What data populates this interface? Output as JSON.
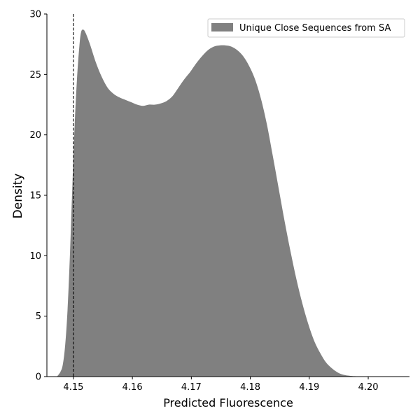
{
  "chart_data": {
    "type": "area",
    "xlabel": "Predicted Fluorescence",
    "ylabel": "Density",
    "xlim": [
      4.1455,
      4.207
    ],
    "ylim": [
      0,
      30
    ],
    "xticks": [
      4.15,
      4.16,
      4.17,
      4.18,
      4.19,
      4.2
    ],
    "xtick_labels": [
      "4.15",
      "4.16",
      "4.17",
      "4.18",
      "4.19",
      "4.20"
    ],
    "yticks": [
      0,
      5,
      10,
      15,
      20,
      25,
      30
    ],
    "ytick_labels": [
      "0",
      "5",
      "10",
      "15",
      "20",
      "25",
      "30"
    ],
    "grid": false,
    "legend_position": "top-right",
    "vline_x": 4.15,
    "series": [
      {
        "name": "Unique Close Sequences from SA",
        "color": "#808080",
        "points": [
          [
            4.1472,
            0.0
          ],
          [
            4.1478,
            0.4
          ],
          [
            4.1482,
            1.0
          ],
          [
            4.1486,
            2.6
          ],
          [
            4.149,
            5.5
          ],
          [
            4.1494,
            10.0
          ],
          [
            4.1498,
            15.5
          ],
          [
            4.1502,
            20.7
          ],
          [
            4.1506,
            24.6
          ],
          [
            4.151,
            27.3
          ],
          [
            4.1513,
            28.5
          ],
          [
            4.1517,
            28.7
          ],
          [
            4.1521,
            28.4
          ],
          [
            4.1528,
            27.5
          ],
          [
            4.1538,
            26.0
          ],
          [
            4.1548,
            24.8
          ],
          [
            4.1558,
            23.9
          ],
          [
            4.1568,
            23.4
          ],
          [
            4.1578,
            23.1
          ],
          [
            4.1588,
            22.9
          ],
          [
            4.1598,
            22.7
          ],
          [
            4.1608,
            22.5
          ],
          [
            4.1618,
            22.4
          ],
          [
            4.1628,
            22.5
          ],
          [
            4.1638,
            22.5
          ],
          [
            4.1648,
            22.6
          ],
          [
            4.1658,
            22.8
          ],
          [
            4.1668,
            23.2
          ],
          [
            4.1678,
            23.9
          ],
          [
            4.1688,
            24.6
          ],
          [
            4.1698,
            25.2
          ],
          [
            4.1708,
            25.9
          ],
          [
            4.1718,
            26.5
          ],
          [
            4.1728,
            27.0
          ],
          [
            4.1738,
            27.3
          ],
          [
            4.1748,
            27.4
          ],
          [
            4.1758,
            27.4
          ],
          [
            4.1768,
            27.3
          ],
          [
            4.1778,
            27.0
          ],
          [
            4.1788,
            26.5
          ],
          [
            4.1798,
            25.7
          ],
          [
            4.1808,
            24.6
          ],
          [
            4.1818,
            23.0
          ],
          [
            4.1828,
            20.9
          ],
          [
            4.1838,
            18.3
          ],
          [
            4.1848,
            15.6
          ],
          [
            4.1858,
            12.9
          ],
          [
            4.1868,
            10.4
          ],
          [
            4.1878,
            8.1
          ],
          [
            4.1888,
            6.1
          ],
          [
            4.1898,
            4.4
          ],
          [
            4.1908,
            3.0
          ],
          [
            4.1918,
            2.0
          ],
          [
            4.1928,
            1.2
          ],
          [
            4.1938,
            0.7
          ],
          [
            4.1948,
            0.35
          ],
          [
            4.1958,
            0.15
          ],
          [
            4.197,
            0.06
          ],
          [
            4.1985,
            0.02
          ],
          [
            4.2005,
            0.0
          ]
        ]
      }
    ]
  }
}
